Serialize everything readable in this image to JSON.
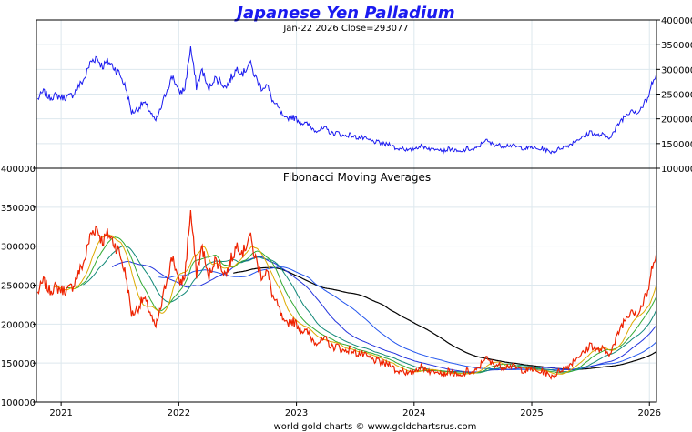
{
  "chart_data": {
    "title": "Japanese Yen Palladium",
    "footer": "world gold charts © www.goldchartsrus.com",
    "colors": {
      "title": "#1a1af0",
      "price_top": "#1a1af0",
      "price_bottom": "#ee2200",
      "ma_colors": [
        "#ddaa00",
        "#33aa33",
        "#118877",
        "#2233dd",
        "#2255ee",
        "#000000"
      ]
    },
    "x_ticks": [
      "2021",
      "2022",
      "2023",
      "2024",
      "2025",
      "2026"
    ],
    "x_range": [
      2020.79,
      2026.06
    ],
    "series_x": [
      2020.8,
      2020.85,
      2020.9,
      2020.95,
      2021.0,
      2021.05,
      2021.1,
      2021.15,
      2021.2,
      2021.25,
      2021.3,
      2021.35,
      2021.4,
      2021.45,
      2021.5,
      2021.55,
      2021.6,
      2021.65,
      2021.7,
      2021.75,
      2021.8,
      2021.85,
      2021.9,
      2021.95,
      2022.0,
      2022.05,
      2022.1,
      2022.15,
      2022.2,
      2022.25,
      2022.3,
      2022.35,
      2022.4,
      2022.45,
      2022.5,
      2022.55,
      2022.6,
      2022.65,
      2022.7,
      2022.75,
      2022.8,
      2022.85,
      2022.9,
      2022.95,
      2023.0,
      2023.05,
      2023.1,
      2023.15,
      2023.2,
      2023.25,
      2023.3,
      2023.35,
      2023.4,
      2023.45,
      2023.5,
      2023.55,
      2023.6,
      2023.65,
      2023.7,
      2023.75,
      2023.8,
      2023.85,
      2023.9,
      2023.95,
      2024.0,
      2024.05,
      2024.1,
      2024.15,
      2024.2,
      2024.25,
      2024.3,
      2024.35,
      2024.4,
      2024.45,
      2024.5,
      2024.55,
      2024.6,
      2024.65,
      2024.7,
      2024.75,
      2024.8,
      2024.85,
      2024.9,
      2024.95,
      2025.0,
      2025.05,
      2025.1,
      2025.15,
      2025.2,
      2025.25,
      2025.3,
      2025.35,
      2025.4,
      2025.45,
      2025.5,
      2025.55,
      2025.6,
      2025.65,
      2025.7,
      2025.75,
      2025.8,
      2025.85,
      2025.9,
      2025.95,
      2026.0,
      2026.03,
      2026.06
    ],
    "price_values": [
      240000,
      255000,
      243000,
      247000,
      244000,
      243000,
      249000,
      266000,
      282000,
      315000,
      325000,
      306000,
      316000,
      304000,
      290000,
      262000,
      212000,
      220000,
      233000,
      218000,
      194000,
      222000,
      260000,
      288000,
      252000,
      260000,
      345000,
      265000,
      300000,
      258000,
      282000,
      277000,
      263000,
      285000,
      303000,
      292000,
      315000,
      285000,
      263000,
      268000,
      235000,
      220000,
      198000,
      205000,
      200000,
      192000,
      188000,
      178000,
      178000,
      180000,
      170000,
      172000,
      165000,
      168000,
      163000,
      162000,
      158000,
      154000,
      152000,
      148000,
      150000,
      138000,
      142000,
      135000,
      140000,
      145000,
      143000,
      138000,
      142000,
      135000,
      140000,
      135000,
      132000,
      140000,
      137000,
      143000,
      158000,
      150000,
      148000,
      145000,
      147000,
      145000,
      142000,
      140000,
      143000,
      138000,
      140000,
      133000,
      135000,
      142000,
      145000,
      152000,
      160000,
      163000,
      175000,
      166000,
      168000,
      162000,
      173000,
      195000,
      208000,
      220000,
      212000,
      228000,
      248000,
      282000,
      293077
    ],
    "panels": [
      {
        "name": "top",
        "subtitle": "Jan-22  2026   Close=293077",
        "y_range": [
          100000,
          400000
        ],
        "y_ticks": [
          100000,
          150000,
          200000,
          250000,
          300000,
          350000,
          400000
        ],
        "y_tick_labels": [
          "100000",
          "150000",
          "200000",
          "250000",
          "300000",
          "350000",
          "400000"
        ]
      },
      {
        "name": "bottom",
        "label": "Fibonacci Moving Averages",
        "y_range": [
          100000,
          400000
        ],
        "y_ticks": [
          100000,
          150000,
          200000,
          250000,
          300000,
          350000,
          400000
        ],
        "y_tick_labels": [
          "100000",
          "150000",
          "200000",
          "250000",
          "300000",
          "350000",
          "400000"
        ]
      }
    ],
    "moving_averages": [
      {
        "name": "MA1",
        "window": 3
      },
      {
        "name": "MA2",
        "window": 5
      },
      {
        "name": "MA3",
        "window": 8
      },
      {
        "name": "MA4",
        "window": 13
      },
      {
        "name": "MA5",
        "window": 21
      },
      {
        "name": "MA6",
        "window": 34
      }
    ]
  }
}
